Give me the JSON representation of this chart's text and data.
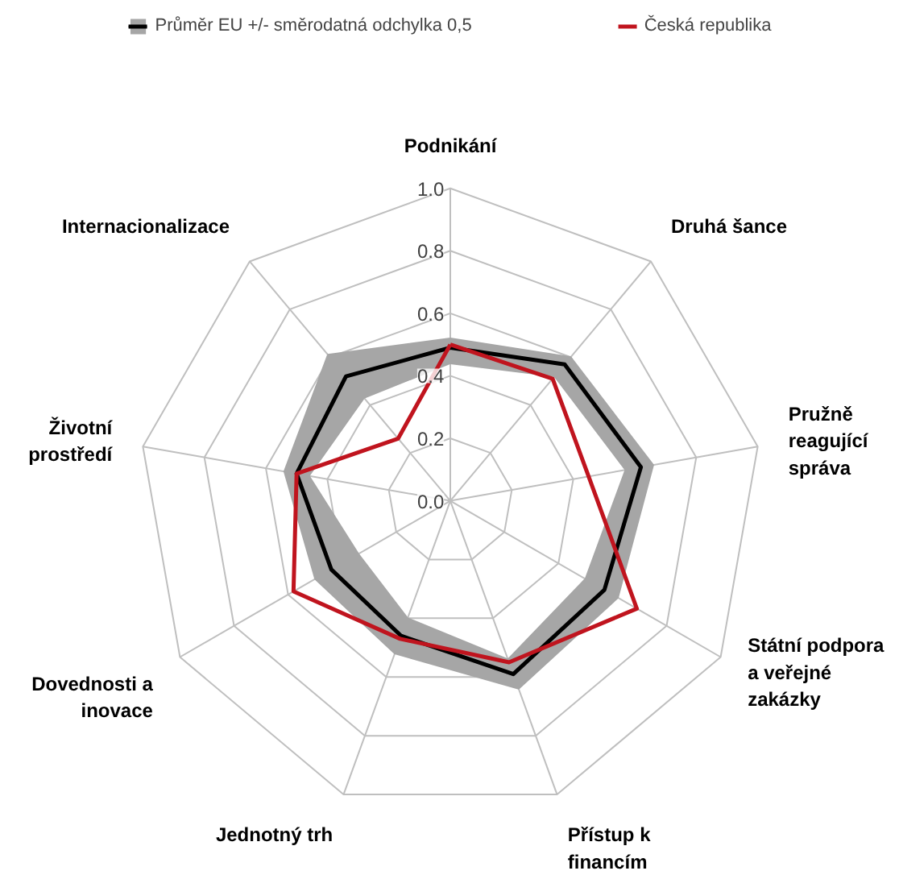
{
  "chart_data": {
    "type": "radar",
    "categories": [
      "Podnikání",
      "Druhá šance",
      "Pružně reagující správa",
      "Státní podpora a veřejné zakázky",
      "Přístup k financím",
      "Jednotný trh",
      "Dovednosti a inovace",
      "Životní prostředí",
      "Internacionalizace"
    ],
    "series": [
      {
        "color": "#a6a6a6",
        "values": [
          0.52,
          0.6,
          0.66,
          0.62,
          0.64,
          0.52,
          0.5,
          0.54,
          0.61
        ]
      },
      {
        "color": "#a6a6a6",
        "values": [
          0.44,
          0.52,
          0.57,
          0.5,
          0.54,
          0.4,
          0.34,
          0.46,
          0.43
        ]
      },
      {
        "name": "Průměr EU +/- směrodatná odchylka 0,5",
        "color": "#000000",
        "values": [
          0.49,
          0.57,
          0.62,
          0.57,
          0.59,
          0.46,
          0.44,
          0.5,
          0.52
        ]
      },
      {
        "name": "Česká republika",
        "color": "#c0141e",
        "values": [
          0.5,
          0.51,
          0.45,
          0.69,
          0.55,
          0.47,
          0.58,
          0.5,
          0.26
        ]
      }
    ],
    "ylim": [
      0,
      1
    ],
    "yticks": [
      {
        "value": 0,
        "label": "0.0"
      },
      {
        "value": 0.2,
        "label": "0.2"
      },
      {
        "value": 0.4,
        "label": "0.4"
      },
      {
        "value": 0.6,
        "label": "0.6"
      },
      {
        "value": 0.8,
        "label": "0.8"
      },
      {
        "value": 1,
        "label": "1.0"
      }
    ],
    "grid": true,
    "legend": "top"
  }
}
